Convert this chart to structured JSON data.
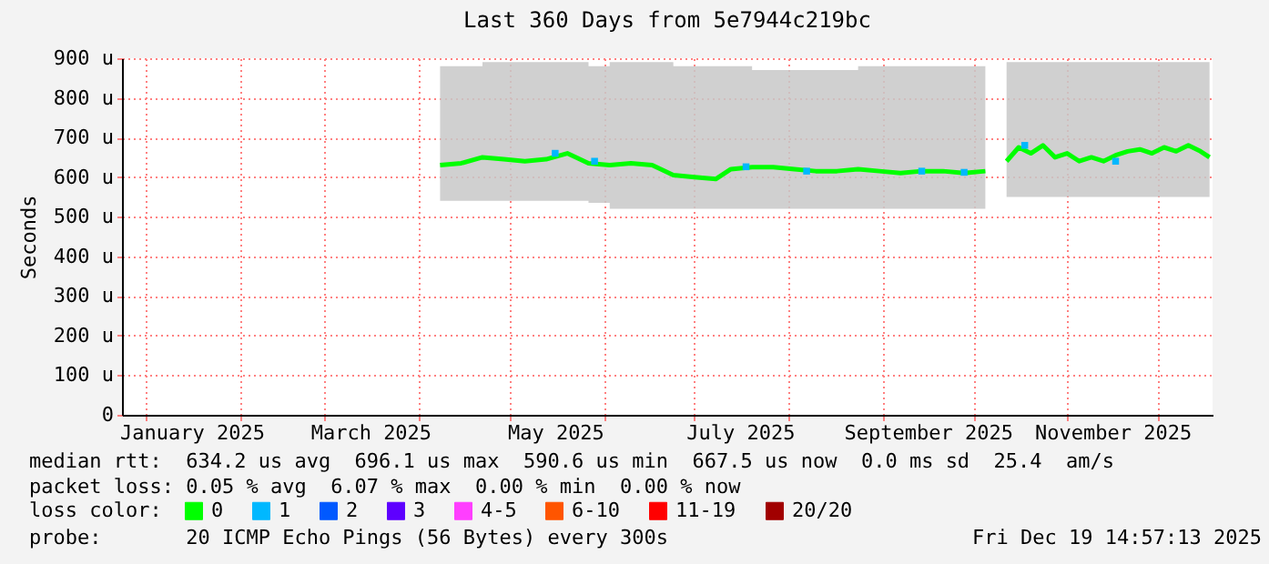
{
  "chart_data": {
    "type": "line",
    "title": "Last 360 Days from 5e7944c219bc",
    "ylabel": "Seconds",
    "legend_title": "loss color:",
    "legend": "bottom",
    "grid": true,
    "marker": "none",
    "xlim": [
      "2024-12-24",
      "2025-12-19"
    ],
    "xticks": [
      {
        "value": "2025-01-01",
        "label": null
      },
      {
        "value": "2025-01-16",
        "label": "January 2025"
      },
      {
        "value": "2025-02-01",
        "label": null
      },
      {
        "value": "2025-03-01",
        "label": null
      },
      {
        "value": "2025-03-16",
        "label": "March 2025"
      },
      {
        "value": "2025-04-01",
        "label": null
      },
      {
        "value": "2025-05-01",
        "label": null
      },
      {
        "value": "2025-05-16",
        "label": "May 2025"
      },
      {
        "value": "2025-06-01",
        "label": null
      },
      {
        "value": "2025-07-01",
        "label": null
      },
      {
        "value": "2025-07-16",
        "label": "July 2025"
      },
      {
        "value": "2025-08-01",
        "label": null
      },
      {
        "value": "2025-09-01",
        "label": null
      },
      {
        "value": "2025-09-16",
        "label": "September 2025"
      },
      {
        "value": "2025-10-01",
        "label": null
      },
      {
        "value": "2025-11-01",
        "label": null
      },
      {
        "value": "2025-11-16",
        "label": "November 2025"
      },
      {
        "value": "2025-12-01",
        "label": null
      }
    ],
    "ylim": [
      0,
      900
    ],
    "yticks": [
      0,
      {
        "value": 100,
        "label": "100 u"
      },
      {
        "value": 200,
        "label": "200 u"
      },
      {
        "value": 300,
        "label": "300 u"
      },
      {
        "value": 400,
        "label": "400 u"
      },
      {
        "value": 500,
        "label": "500 u"
      },
      {
        "value": 600,
        "label": "600 u"
      },
      {
        "value": 700,
        "label": "700 u"
      },
      {
        "value": 800,
        "label": "800 u"
      },
      {
        "value": 900,
        "label": "900 u"
      }
    ],
    "series": [
      {
        "name": "0",
        "color": "#00ff00",
        "x": [
          "2025-04-08",
          "2025-04-15",
          "2025-04-22",
          "2025-04-29",
          "2025-05-06",
          "2025-05-13",
          "2025-05-20",
          "2025-05-27",
          "2025-06-03",
          "2025-06-10",
          "2025-06-17",
          "2025-06-24",
          "2025-07-01",
          "2025-07-08",
          "2025-07-13",
          "2025-07-20",
          "2025-07-27",
          "2025-08-03",
          "2025-08-10",
          "2025-08-17",
          "2025-08-24",
          "2025-08-31",
          "2025-09-07",
          "2025-09-14",
          "2025-09-21",
          "2025-09-28",
          "2025-10-05",
          "2025-10-09",
          "2025-10-12",
          "2025-10-16",
          "2025-10-20",
          "2025-10-24",
          "2025-10-28",
          "2025-11-01",
          "2025-11-05",
          "2025-11-09",
          "2025-11-13",
          "2025-11-17",
          "2025-11-21",
          "2025-11-25",
          "2025-11-29",
          "2025-12-03",
          "2025-12-07",
          "2025-12-11",
          "2025-12-15",
          "2025-12-18"
        ],
        "values": [
          630,
          635,
          650,
          645,
          640,
          645,
          660,
          635,
          630,
          635,
          630,
          605,
          600,
          595,
          620,
          625,
          625,
          620,
          615,
          615,
          620,
          615,
          610,
          615,
          615,
          610,
          615,
          null,
          640,
          675,
          660,
          680,
          650,
          660,
          640,
          650,
          640,
          655,
          665,
          670,
          660,
          675,
          665,
          680,
          665,
          650
        ],
        "lower": [
          540,
          540,
          540,
          540,
          540,
          540,
          540,
          535,
          520,
          520,
          520,
          520,
          520,
          520,
          520,
          520,
          520,
          520,
          520,
          520,
          520,
          520,
          520,
          520,
          520,
          520,
          520,
          null,
          550,
          550,
          550,
          550,
          550,
          550,
          550,
          550,
          550,
          550,
          550,
          550,
          550,
          550,
          550,
          550,
          550,
          550
        ],
        "upper": [
          880,
          880,
          890,
          890,
          890,
          890,
          890,
          880,
          890,
          890,
          890,
          880,
          880,
          880,
          880,
          870,
          870,
          870,
          870,
          870,
          880,
          880,
          880,
          880,
          880,
          880,
          880,
          null,
          890,
          890,
          890,
          890,
          890,
          890,
          890,
          890,
          890,
          890,
          890,
          890,
          890,
          890,
          890,
          890,
          890,
          890
        ]
      },
      {
        "name": "1",
        "type": "scatter",
        "color": "#00b8ff",
        "marker": "square",
        "x": [
          "2025-05-16",
          "2025-05-29",
          "2025-07-18",
          "2025-08-07",
          "2025-09-14",
          "2025-09-28",
          "2025-10-18",
          "2025-11-17"
        ],
        "values": [
          660,
          640,
          626,
          615,
          615,
          612,
          680,
          640
        ]
      },
      {
        "name": "2",
        "type": "scatter",
        "color": "#0059ff"
      },
      {
        "name": "3",
        "type": "scatter",
        "color": "#5e00ff"
      },
      {
        "name": "4-5",
        "type": "scatter",
        "color": "#ff3eff"
      },
      {
        "name": "6-10",
        "type": "scatter",
        "color": "#ff5500"
      },
      {
        "name": "11-19",
        "type": "scatter",
        "color": "#ff0000"
      },
      {
        "name": "20/20",
        "type": "scatter",
        "color": "#a10000"
      }
    ],
    "annotations": [
      "median rtt:  634.2 us avg  696.1 us max  590.6 us min  667.5 us now  0.0 ms sd  25.4  am/s",
      "packet loss: 0.05 % avg  6.07 % max  0.00 % min  0.00 % now",
      "probe:       20 ICMP Echo Pings (56 Bytes) every 300s",
      "Fri Dec 19 14:57:13 2025"
    ]
  }
}
